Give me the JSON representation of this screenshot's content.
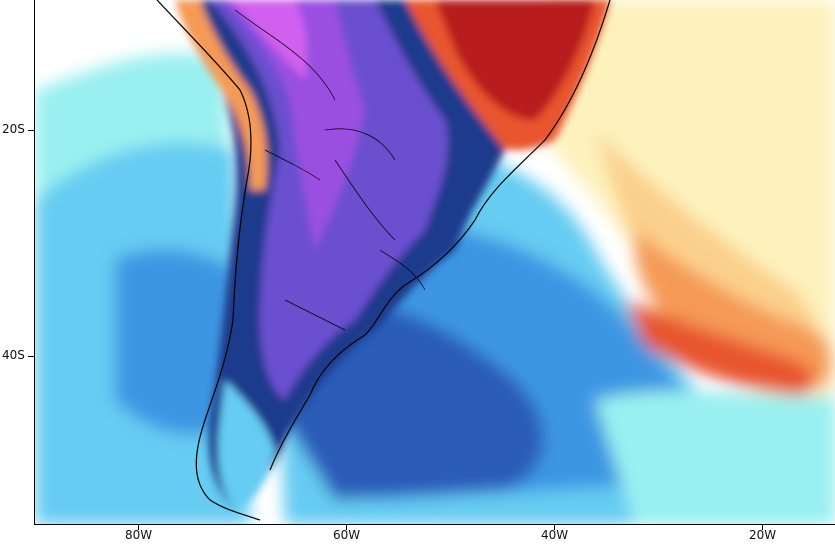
{
  "map": {
    "region": "South America",
    "palette": {
      "ocean_cyan": "#9af0f0",
      "ocean_light_blue": "#66ccf2",
      "ocean_mid_blue": "#3e96e2",
      "ocean_dark_blue": "#2a5cb8",
      "navy": "#1c3a8c",
      "purple": "#6a4fcf",
      "violet": "#9a4fe0",
      "magenta": "#d260ef",
      "pale_yellow": "#fdf2bd",
      "light_orange": "#fbd08c",
      "orange": "#f59a56",
      "red_orange": "#e8542f",
      "dark_red": "#b81c1c",
      "white": "#ffffff"
    },
    "x_axis": {
      "ticks": [
        {
          "label": "80W",
          "lon": -80
        },
        {
          "label": "60W",
          "lon": -60
        },
        {
          "label": "40W",
          "lon": -40
        },
        {
          "label": "20W",
          "lon": -20
        }
      ]
    },
    "y_axis": {
      "ticks": [
        {
          "label": "20S",
          "lat": -20
        },
        {
          "label": "40S",
          "lat": -40
        }
      ]
    }
  }
}
